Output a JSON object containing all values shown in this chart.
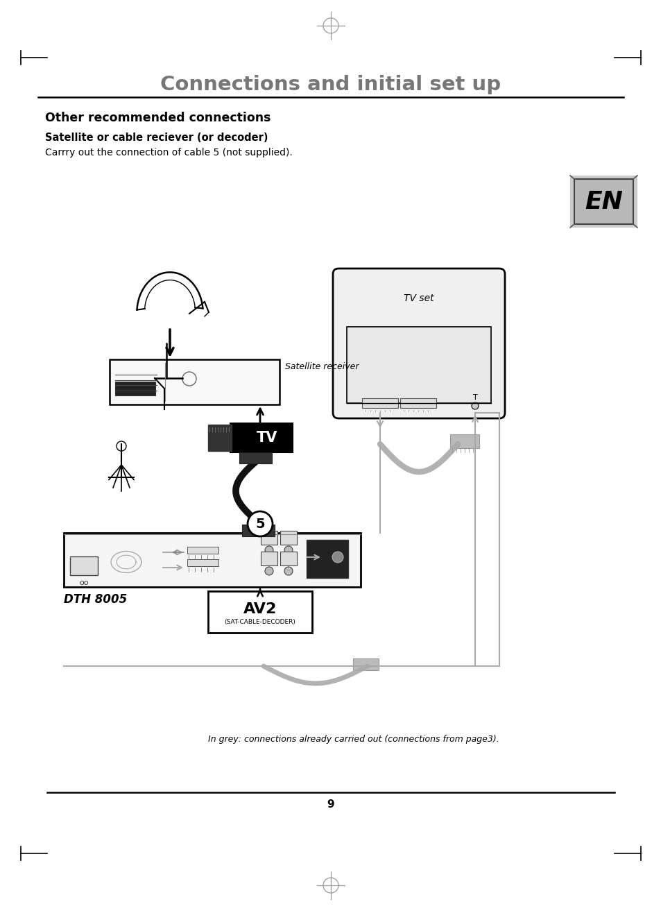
{
  "page_title": "Connections and initial set up",
  "section_title": "Other recommended connections",
  "subsection_title": "Satellite or cable reciever (or decoder)",
  "body_text": "Carrry out the connection of cable 5 (not supplied).",
  "footer_note": "In grey: connections already carried out (connections from page3).",
  "page_number": "9",
  "bg": "#ffffff",
  "title_color": "#777777",
  "black": "#000000",
  "gray": "#aaaaaa",
  "darkgray": "#666666"
}
